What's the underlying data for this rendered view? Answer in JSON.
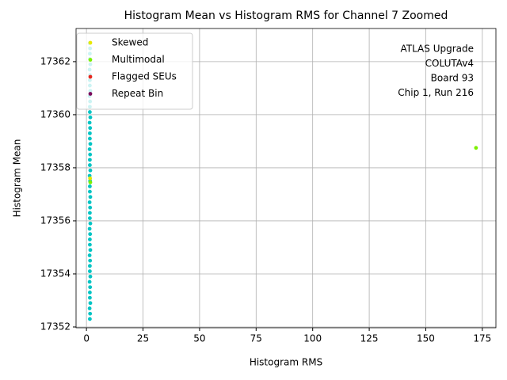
{
  "chart_data": {
    "type": "scatter",
    "title": "Histogram Mean vs Histogram RMS for Channel 7 Zoomed",
    "x_label": "Histogram RMS",
    "y_label": "Histogram Mean",
    "annotation": [
      "ATLAS Upgrade",
      "COLUTAv4",
      "Board 93",
      "Chip 1, Run 216"
    ],
    "xlim": [
      -4.6,
      181
    ],
    "ylim": [
      17351.97,
      17363.25
    ],
    "xticks": [
      0,
      25,
      50,
      75,
      100,
      125,
      150,
      175
    ],
    "yticks": [
      17352,
      17354,
      17356,
      17358,
      17360,
      17362
    ],
    "grid": true,
    "legend": "upper-left",
    "series": [
      {
        "color": "#00c4c4",
        "x": [
          1.5,
          1.6,
          1.4,
          1.7,
          1.5,
          1.5,
          1.6,
          1.4,
          1.7,
          1.5,
          1.5,
          1.6,
          1.4,
          1.7,
          1.5,
          1.5,
          1.6,
          1.4,
          1.7,
          1.5,
          1.5,
          1.6,
          1.4,
          1.7,
          1.5,
          1.5,
          1.6,
          1.4,
          1.7,
          1.5,
          1.5,
          1.6,
          1.4,
          1.7,
          1.5,
          1.5,
          1.6,
          1.4,
          1.7,
          1.5,
          1.5,
          1.6,
          1.4,
          1.7,
          1.5,
          1.5,
          1.6,
          1.4,
          1.7,
          1.5,
          1.5,
          1.6,
          1.4
        ],
        "values": [
          17352.3,
          17352.5,
          17352.7,
          17352.9,
          17353.1,
          17353.3,
          17353.5,
          17353.7,
          17353.9,
          17354.1,
          17354.3,
          17354.5,
          17354.7,
          17354.9,
          17355.1,
          17355.3,
          17355.5,
          17355.7,
          17355.9,
          17356.1,
          17356.3,
          17356.5,
          17356.7,
          17356.9,
          17357.1,
          17357.3,
          17357.5,
          17357.7,
          17357.9,
          17358.1,
          17358.3,
          17358.5,
          17358.7,
          17358.9,
          17359.1,
          17359.3,
          17359.5,
          17359.7,
          17359.9,
          17360.1,
          17360.3,
          17360.5,
          17360.7,
          17360.9,
          17361.1,
          17361.3,
          17361.5,
          17361.7,
          17361.9,
          17362.1,
          17362.3,
          17362.5,
          17362.7
        ]
      },
      {
        "name": "Skewed",
        "color": "#e8e800",
        "x": [
          1.6
        ],
        "values": [
          17357.6
        ]
      },
      {
        "name": "Multimodal",
        "color": "#7cf000",
        "x": [
          172.2,
          1.7
        ],
        "values": [
          17358.75,
          17357.45
        ]
      },
      {
        "name": "Flagged SEUs",
        "color": "#e8281e",
        "x": [],
        "values": []
      },
      {
        "name": "Repeat Bin",
        "color": "#7a0a5a",
        "x": [],
        "values": []
      }
    ]
  }
}
